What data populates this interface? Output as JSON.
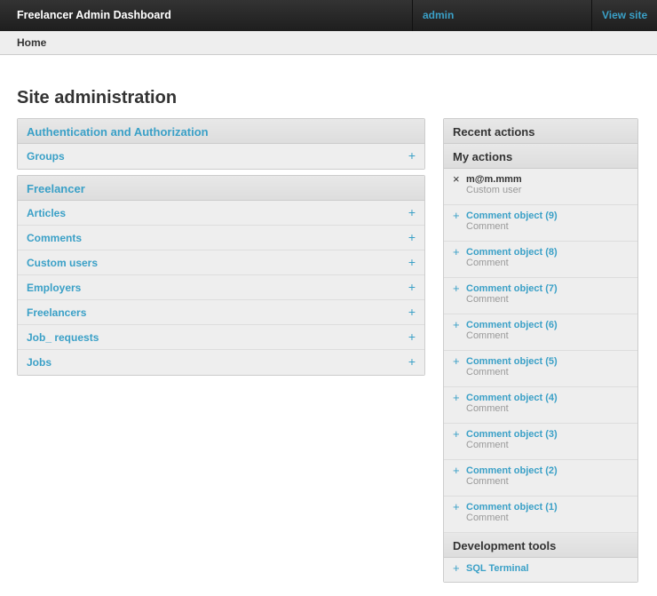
{
  "header": {
    "title": "Freelancer Admin Dashboard",
    "user": "admin",
    "view_site": "View site"
  },
  "breadcrumb": "Home",
  "page_title": "Site administration",
  "apps": [
    {
      "name": "Authentication and Authorization",
      "models": [
        "Groups"
      ]
    },
    {
      "name": "Freelancer",
      "models": [
        "Articles",
        "Comments",
        "Custom users",
        "Employers",
        "Freelancers",
        "Job_ requests",
        "Jobs"
      ]
    }
  ],
  "add_icon": "+",
  "recent": {
    "title": "Recent actions",
    "my_actions": "My actions",
    "items": [
      {
        "icon": "delete",
        "glyph": "×",
        "title": "m@m.mmm",
        "type": "Custom user"
      },
      {
        "icon": "add",
        "glyph": "+",
        "title": "Comment object (9)",
        "type": "Comment"
      },
      {
        "icon": "add",
        "glyph": "+",
        "title": "Comment object (8)",
        "type": "Comment"
      },
      {
        "icon": "add",
        "glyph": "+",
        "title": "Comment object (7)",
        "type": "Comment"
      },
      {
        "icon": "add",
        "glyph": "+",
        "title": "Comment object (6)",
        "type": "Comment"
      },
      {
        "icon": "add",
        "glyph": "+",
        "title": "Comment object (5)",
        "type": "Comment"
      },
      {
        "icon": "add",
        "glyph": "+",
        "title": "Comment object (4)",
        "type": "Comment"
      },
      {
        "icon": "add",
        "glyph": "+",
        "title": "Comment object (3)",
        "type": "Comment"
      },
      {
        "icon": "add",
        "glyph": "+",
        "title": "Comment object (2)",
        "type": "Comment"
      },
      {
        "icon": "add",
        "glyph": "+",
        "title": "Comment object (1)",
        "type": "Comment"
      }
    ]
  },
  "dev_tools": {
    "title": "Development tools",
    "items": [
      "SQL Terminal"
    ]
  }
}
